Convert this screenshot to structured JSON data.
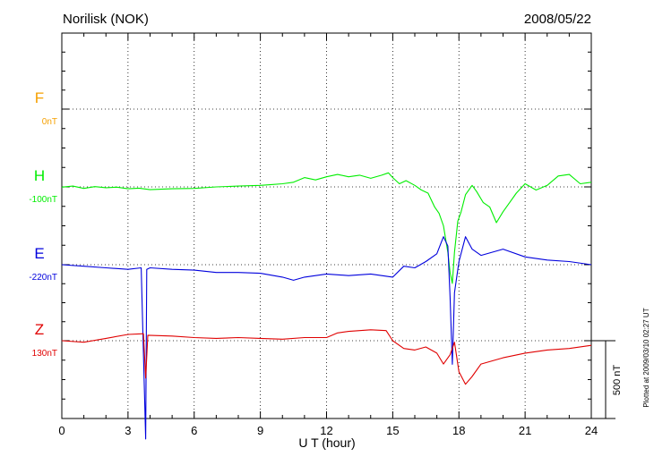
{
  "header": {
    "title": "Norilisk (NOK)",
    "date": "2008/05/22"
  },
  "footer_note": "Plotted at 2009/03/10 02:27 UT",
  "colors": {
    "F": "#f5a000",
    "H": "#00ee00",
    "E": "#0000dd",
    "Z": "#e00000",
    "axis": "#000000"
  },
  "chart_data": {
    "type": "line",
    "xlabel": "U T (hour)",
    "xlim": [
      0,
      24
    ],
    "x_ticks": [
      0,
      3,
      6,
      9,
      12,
      15,
      18,
      21,
      24
    ],
    "x_tick_labels": [
      "0",
      "3",
      "6",
      "9",
      "12",
      "15",
      "18",
      "21",
      "24"
    ],
    "scale_bar": {
      "label": "500 nT",
      "value_nT": 500
    },
    "series": [
      {
        "name": "F",
        "baseline": "0nT",
        "points": []
      },
      {
        "name": "H",
        "baseline": "-100nT",
        "points": [
          [
            0,
            -102
          ],
          [
            0.5,
            -95
          ],
          [
            1,
            -110
          ],
          [
            1.5,
            -98
          ],
          [
            2,
            -105
          ],
          [
            2.5,
            -102
          ],
          [
            3,
            -112
          ],
          [
            3.5,
            -108
          ],
          [
            4,
            -118
          ],
          [
            4.5,
            -115
          ],
          [
            5,
            -112
          ],
          [
            6,
            -110
          ],
          [
            7,
            -100
          ],
          [
            8,
            -95
          ],
          [
            9,
            -90
          ],
          [
            9.5,
            -85
          ],
          [
            10,
            -80
          ],
          [
            10.5,
            -70
          ],
          [
            11,
            -40
          ],
          [
            11.5,
            -55
          ],
          [
            12,
            -35
          ],
          [
            12.5,
            -20
          ],
          [
            13,
            -35
          ],
          [
            13.5,
            -25
          ],
          [
            14,
            -45
          ],
          [
            14.5,
            -25
          ],
          [
            14.8,
            -10
          ],
          [
            15,
            -40
          ],
          [
            15.3,
            -80
          ],
          [
            15.6,
            -60
          ],
          [
            16,
            -90
          ],
          [
            16.3,
            -120
          ],
          [
            16.6,
            -140
          ],
          [
            16.9,
            -230
          ],
          [
            17.1,
            -270
          ],
          [
            17.3,
            -350
          ],
          [
            17.5,
            -520
          ],
          [
            17.6,
            -650
          ],
          [
            17.7,
            -720
          ],
          [
            17.8,
            -520
          ],
          [
            17.95,
            -320
          ],
          [
            18.1,
            -260
          ],
          [
            18.3,
            -150
          ],
          [
            18.6,
            -90
          ],
          [
            18.8,
            -130
          ],
          [
            19.1,
            -200
          ],
          [
            19.4,
            -230
          ],
          [
            19.7,
            -330
          ],
          [
            20,
            -260
          ],
          [
            20.3,
            -200
          ],
          [
            20.6,
            -140
          ],
          [
            21,
            -80
          ],
          [
            21.5,
            -120
          ],
          [
            22,
            -90
          ],
          [
            22.5,
            -30
          ],
          [
            23,
            -20
          ],
          [
            23.5,
            -80
          ],
          [
            24,
            -70
          ]
        ]
      },
      {
        "name": "E",
        "baseline": "-220nT",
        "points": [
          [
            0,
            -220
          ],
          [
            1,
            -230
          ],
          [
            2,
            -240
          ],
          [
            3,
            -250
          ],
          [
            3.6,
            -240
          ],
          [
            3.8,
            -1340
          ],
          [
            3.85,
            -250
          ],
          [
            4,
            -240
          ],
          [
            5,
            -250
          ],
          [
            6,
            -255
          ],
          [
            7,
            -270
          ],
          [
            8,
            -270
          ],
          [
            9,
            -275
          ],
          [
            10,
            -300
          ],
          [
            10.5,
            -320
          ],
          [
            11,
            -300
          ],
          [
            12,
            -280
          ],
          [
            13,
            -290
          ],
          [
            14,
            -280
          ],
          [
            15,
            -300
          ],
          [
            15.5,
            -230
          ],
          [
            16,
            -240
          ],
          [
            16.5,
            -200
          ],
          [
            17,
            -150
          ],
          [
            17.3,
            -40
          ],
          [
            17.5,
            -100
          ],
          [
            17.6,
            -430
          ],
          [
            17.7,
            -860
          ],
          [
            17.8,
            -400
          ],
          [
            18,
            -200
          ],
          [
            18.3,
            -40
          ],
          [
            18.6,
            -120
          ],
          [
            19,
            -160
          ],
          [
            20,
            -120
          ],
          [
            21,
            -170
          ],
          [
            22,
            -190
          ],
          [
            23,
            -200
          ],
          [
            24,
            -220
          ]
        ]
      },
      {
        "name": "Z",
        "baseline": "130nT",
        "points": [
          [
            0,
            130
          ],
          [
            1,
            120
          ],
          [
            2,
            145
          ],
          [
            3,
            170
          ],
          [
            3.7,
            175
          ],
          [
            3.8,
            -110
          ],
          [
            3.9,
            165
          ],
          [
            5,
            160
          ],
          [
            6,
            150
          ],
          [
            7,
            145
          ],
          [
            8,
            150
          ],
          [
            9,
            145
          ],
          [
            10,
            140
          ],
          [
            11,
            150
          ],
          [
            12,
            150
          ],
          [
            12.5,
            180
          ],
          [
            13,
            190
          ],
          [
            14,
            200
          ],
          [
            14.7,
            195
          ],
          [
            15,
            130
          ],
          [
            15.5,
            80
          ],
          [
            16,
            70
          ],
          [
            16.5,
            90
          ],
          [
            17,
            50
          ],
          [
            17.3,
            -20
          ],
          [
            17.6,
            40
          ],
          [
            17.8,
            120
          ],
          [
            18,
            -70
          ],
          [
            18.3,
            -150
          ],
          [
            18.6,
            -100
          ],
          [
            19,
            -20
          ],
          [
            20,
            20
          ],
          [
            21,
            50
          ],
          [
            22,
            70
          ],
          [
            23,
            80
          ],
          [
            24,
            100
          ]
        ]
      }
    ]
  }
}
